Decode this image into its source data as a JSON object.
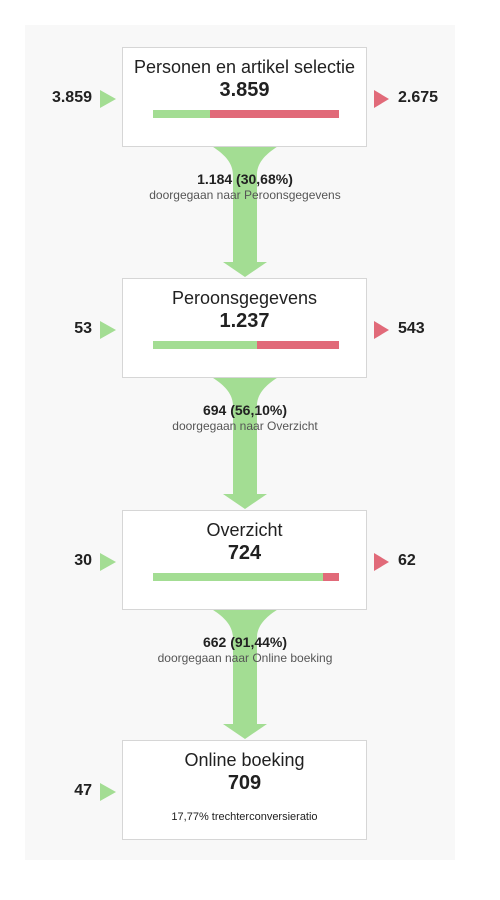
{
  "colors": {
    "progress": "#a3dd93",
    "exit": "#e16a79",
    "arrow_in": "#a3dd93",
    "arrow_out": "#e16a79"
  },
  "chart_data": {
    "type": "funnel",
    "stages": [
      {
        "name": "Personen en artikel selectie",
        "value": "3.859",
        "value_num": 3859,
        "entered": "3.859",
        "exited": "2.675",
        "exited_num": 2675
      },
      {
        "name": "Peroonsgegevens",
        "value": "1.237",
        "value_num": 1237,
        "entered": "53",
        "exited": "543",
        "exited_num": 543
      },
      {
        "name": "Overzicht",
        "value": "724",
        "value_num": 724,
        "entered": "30",
        "exited": "62",
        "exited_num": 62
      },
      {
        "name": "Online boeking",
        "value": "709",
        "value_num": 709,
        "entered": "47",
        "exited": null,
        "conversion_text": "17,77% trechterconversieratio"
      }
    ],
    "transitions": [
      {
        "count": "1.184 (30,68%)",
        "count_num": 1184,
        "label": "doorgegaan naar Peroonsgegevens"
      },
      {
        "count": "694 (56,10%)",
        "count_num": 694,
        "label": "doorgegaan naar Overzicht"
      },
      {
        "count": "662 (91,44%)",
        "count_num": 662,
        "label": "doorgegaan naar Online boeking"
      }
    ]
  }
}
